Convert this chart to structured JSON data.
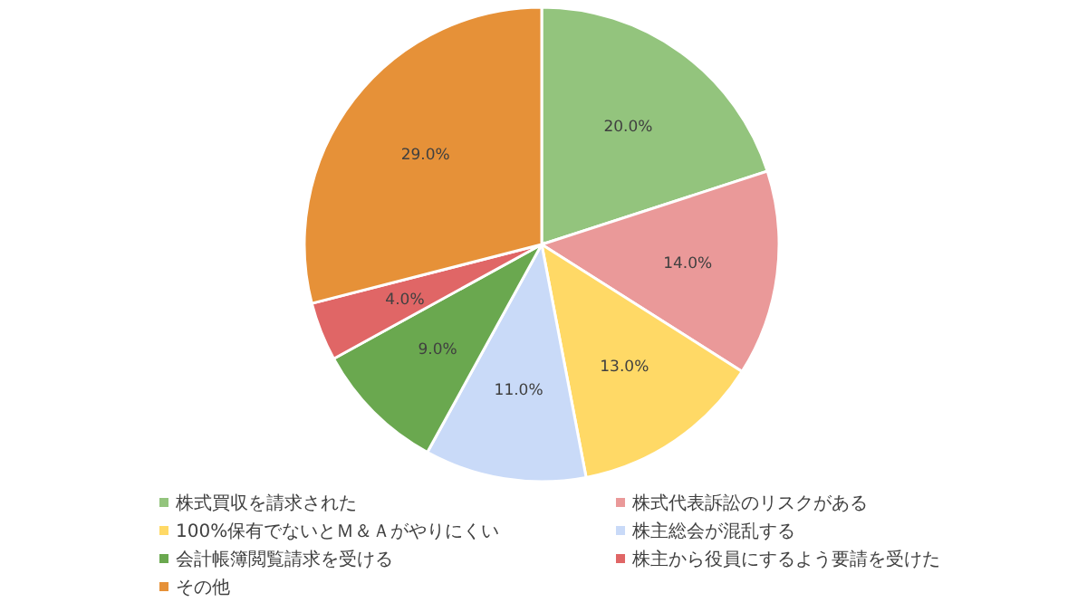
{
  "chart_data": {
    "type": "pie",
    "categories": [
      "株式買収を請求された",
      "株式代表訴訟のリスクがある",
      "100%保有でないとＭ＆Ａがやりにくい",
      "株主総会が混乱する",
      "会計帳簿閲覧請求を受ける",
      "株主から役員にするよう要請を受けた",
      "その他"
    ],
    "values": [
      20,
      14,
      13,
      11,
      9,
      4,
      29
    ],
    "colors": [
      "#93c47d",
      "#ea9999",
      "#ffd966",
      "#c9daf8",
      "#6aa84f",
      "#e06666",
      "#e69138"
    ],
    "value_labels": [
      "20.0%",
      "14.0%",
      "13.0%",
      "11.0%",
      "9.0%",
      "4.0%",
      "29.0%"
    ],
    "legend": "bottom"
  }
}
